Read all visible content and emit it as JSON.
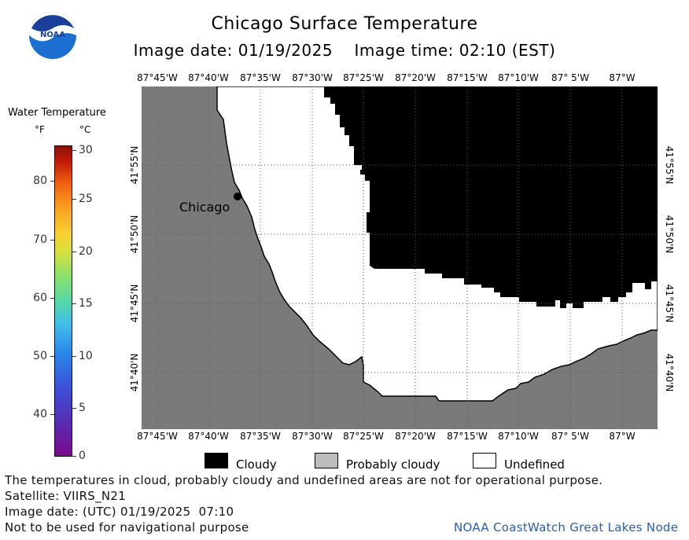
{
  "header": {
    "title": "Chicago Surface Temperature",
    "subtitle": "Image date: 01/19/2025    Image time: 02:10 (EST)",
    "logo_text": "NOAA"
  },
  "legend": {
    "title": "Water Temperature",
    "unit_f": "°F",
    "unit_c": "°C",
    "f_ticks": [
      "40",
      "50",
      "60",
      "70",
      "80"
    ],
    "c_ticks": [
      "0",
      "5",
      "10",
      "15",
      "20",
      "25",
      "30"
    ]
  },
  "axes": {
    "lon_ticks": [
      "87°45'W",
      "87°40'W",
      "87°35'W",
      "87°30'W",
      "87°25'W",
      "87°20'W",
      "87°15'W",
      "87°10'W",
      "87° 5'W",
      "87°W"
    ],
    "lat_ticks": [
      "41°55'N",
      "41°50'N",
      "41°45'N",
      "41°40'N"
    ]
  },
  "map": {
    "city_label": "Chicago",
    "colors": {
      "land": "#7a7a7a",
      "cloud": "#000000",
      "undefined": "#ffffff",
      "grid": "#555555"
    }
  },
  "key": {
    "cloudy": "Cloudy",
    "probably_cloudy": "Probably cloudy",
    "undefined": "Undefined",
    "colors": {
      "cloudy": "#000000",
      "probably_cloudy": "#bdbdbd",
      "undefined": "#ffffff"
    }
  },
  "footer": {
    "note": "The temperatures in cloud, probably cloudy and undefined areas are not for operational purpose.",
    "satellite": "Satellite: VIIRS_N21",
    "utc_date": "Image date: (UTC) 01/19/2025  07:10",
    "nav_note": "Not to be used for navigational purpose",
    "credit": "NOAA CoastWatch Great Lakes Node"
  }
}
